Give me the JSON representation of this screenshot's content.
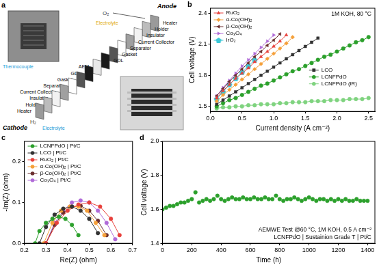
{
  "diagram": {
    "title": "a",
    "anode": "Anode",
    "cathode": "Cathode",
    "anode_gas": "O₂",
    "cathode_gas": "H₂",
    "electrolyte_labels": [
      "Electrolyte",
      "Electrolyte"
    ],
    "thermocouple": "Thermocouple",
    "anode_layers": [
      "Heater",
      "Holder",
      "Insulator",
      "Current Collector",
      "Separator",
      "Gasket",
      "GDL"
    ],
    "center_layer": "AEM",
    "cathode_layers": [
      "GDL",
      "Gasket",
      "Separator",
      "Current Collector",
      "Insulator",
      "Holder",
      "Heater"
    ]
  },
  "chart_data": [
    {
      "type": "line",
      "title": "b",
      "x_label": "Current density (A cm⁻²)",
      "y_label": "Cell voltage (V)",
      "annotations": [
        "1M KOH, 80 °C"
      ],
      "xlim": [
        0,
        2.6
      ],
      "xticks": [
        {
          "value": 0,
          "label": "0.0"
        },
        0.5,
        {
          "value": 1,
          "label": "1.0"
        },
        1.5,
        {
          "value": 2,
          "label": "2.0"
        },
        2.5
      ],
      "ylim": [
        1.45,
        2.45
      ],
      "yticks": [
        1.5,
        1.8,
        2.1,
        2.4
      ],
      "grid": false,
      "legend": "upper left",
      "line_style": "solid",
      "series": [
        {
          "name": "RuO₂",
          "color": "#e8413c",
          "marker": "triangle",
          "x": [
            0.1,
            0.2,
            0.3,
            0.4,
            0.5,
            0.6,
            0.7,
            0.8,
            0.9,
            1.0,
            1.1,
            1.2
          ],
          "values": [
            1.58,
            1.65,
            1.71,
            1.77,
            1.82,
            1.87,
            1.93,
            1.98,
            2.03,
            2.08,
            2.13,
            2.19
          ]
        },
        {
          "name": "α-Co(OH)₂",
          "color": "#f5a03a",
          "marker": "diamond",
          "x": [
            0.1,
            0.2,
            0.3,
            0.4,
            0.5,
            0.6,
            0.7,
            0.8,
            0.9,
            1.0,
            1.1,
            1.2,
            1.3
          ],
          "values": [
            1.55,
            1.61,
            1.66,
            1.71,
            1.76,
            1.81,
            1.86,
            1.91,
            1.96,
            2.01,
            2.06,
            2.11,
            2.17
          ]
        },
        {
          "name": "β-Co(OH)₂",
          "color": "#6b2f2f",
          "marker": "triangle-left",
          "x": [
            0.1,
            0.2,
            0.3,
            0.4,
            0.5,
            0.6,
            0.7,
            0.8,
            0.9,
            1.0,
            1.1
          ],
          "values": [
            1.6,
            1.67,
            1.74,
            1.8,
            1.86,
            1.92,
            1.98,
            2.03,
            2.09,
            2.14,
            2.2
          ]
        },
        {
          "name": "Co₃O₄",
          "color": "#b06ad8",
          "marker": "triangle-right",
          "x": [
            0.1,
            0.2,
            0.3,
            0.4,
            0.5,
            0.6,
            0.7,
            0.8,
            0.9,
            1.0
          ],
          "values": [
            1.6,
            1.68,
            1.75,
            1.82,
            1.89,
            1.95,
            2.01,
            2.07,
            2.13,
            2.19
          ]
        },
        {
          "name": "IrO₂",
          "color": "#3cc8d8",
          "marker": "pentagon",
          "x": [
            0.1,
            0.2,
            0.3,
            0.4,
            0.5,
            0.6,
            0.7
          ],
          "values": [
            1.57,
            1.64,
            1.71,
            1.77,
            1.83,
            1.89,
            1.95
          ]
        },
        {
          "name": "LCO",
          "color": "#333333",
          "marker": "square",
          "x": [
            0.1,
            0.2,
            0.3,
            0.4,
            0.5,
            0.6,
            0.7,
            0.8,
            0.9,
            1.0,
            1.1,
            1.2,
            1.3,
            1.4,
            1.5,
            1.6,
            1.7
          ],
          "values": [
            1.52,
            1.56,
            1.6,
            1.64,
            1.68,
            1.72,
            1.76,
            1.8,
            1.84,
            1.88,
            1.92,
            1.96,
            2.0,
            2.04,
            2.08,
            2.12,
            2.16
          ]
        },
        {
          "name": "LCNFPdO",
          "color": "#2ca02c",
          "marker": "circle",
          "x": [
            0.1,
            0.2,
            0.3,
            0.4,
            0.5,
            0.6,
            0.7,
            0.8,
            0.9,
            1.0,
            1.1,
            1.2,
            1.3,
            1.4,
            1.5,
            1.6,
            1.7,
            1.8,
            1.9,
            2.0,
            2.1,
            2.2,
            2.3,
            2.4,
            2.5
          ],
          "values": [
            1.5,
            1.53,
            1.56,
            1.58,
            1.61,
            1.64,
            1.67,
            1.7,
            1.72,
            1.75,
            1.78,
            1.81,
            1.84,
            1.86,
            1.89,
            1.92,
            1.95,
            1.98,
            2.0,
            2.03,
            2.06,
            2.09,
            2.12,
            2.14,
            2.17
          ]
        },
        {
          "name": "LCNFPdO (iR)",
          "color": "#7fd37f",
          "marker": "circle",
          "x": [
            0.1,
            0.2,
            0.3,
            0.4,
            0.5,
            0.6,
            0.7,
            0.8,
            0.9,
            1.0,
            1.1,
            1.2,
            1.3,
            1.4,
            1.5,
            1.6,
            1.7,
            1.8,
            1.9,
            2.0,
            2.1,
            2.2,
            2.3,
            2.4,
            2.5
          ],
          "values": [
            1.48,
            1.49,
            1.49,
            1.5,
            1.5,
            1.51,
            1.51,
            1.52,
            1.52,
            1.52,
            1.53,
            1.53,
            1.54,
            1.54,
            1.54,
            1.55,
            1.55,
            1.55,
            1.56,
            1.56,
            1.56,
            1.57,
            1.57,
            1.57,
            1.58
          ]
        }
      ]
    },
    {
      "type": "line",
      "title": "c",
      "x_label": "Re(Z) (ohm)",
      "y_label": "-Im(Z) (ohm)",
      "xlim": [
        0.2,
        0.7
      ],
      "xticks": [
        0.2,
        0.3,
        0.4,
        0.5,
        0.6,
        0.7
      ],
      "ylim": [
        0,
        0.25
      ],
      "yticks": [
        {
          "value": 0,
          "label": "0.0"
        },
        0.1,
        0.2
      ],
      "grid": false,
      "legend": "upper left",
      "line_style": "solid",
      "series": [
        {
          "name": "LCNFPdO | Pt/C",
          "color": "#2ca02c",
          "marker": "circle",
          "x": [
            0.25,
            0.27,
            0.3,
            0.33,
            0.36,
            0.39,
            0.42,
            0.45
          ],
          "values": [
            0,
            0.03,
            0.05,
            0.06,
            0.065,
            0.06,
            0.045,
            0.02
          ]
        },
        {
          "name": "LCO | Pt/C",
          "color": "#333333",
          "marker": "circle",
          "x": [
            0.27,
            0.3,
            0.34,
            0.38,
            0.42,
            0.46,
            0.5,
            0.54
          ],
          "values": [
            0,
            0.04,
            0.07,
            0.085,
            0.09,
            0.08,
            0.06,
            0.025
          ]
        },
        {
          "name": "RuO₂ | Pt/C",
          "color": "#e8413c",
          "marker": "circle",
          "x": [
            0.3,
            0.35,
            0.4,
            0.45,
            0.5,
            0.55,
            0.6,
            0.64
          ],
          "values": [
            0,
            0.05,
            0.08,
            0.095,
            0.1,
            0.09,
            0.06,
            0.02
          ]
        },
        {
          "name": "α-Co(OH)₂ | Pt/C",
          "color": "#f5a03a",
          "marker": "circle",
          "x": [
            0.29,
            0.33,
            0.37,
            0.41,
            0.45,
            0.49,
            0.53,
            0.57
          ],
          "values": [
            0,
            0.05,
            0.08,
            0.09,
            0.09,
            0.08,
            0.05,
            0.02
          ]
        },
        {
          "name": "β-Co(OH)₂ | Pt/C",
          "color": "#6b2f2f",
          "marker": "circle",
          "x": [
            0.3,
            0.34,
            0.38,
            0.42,
            0.46,
            0.5,
            0.54,
            0.58
          ],
          "values": [
            0,
            0.045,
            0.075,
            0.09,
            0.092,
            0.08,
            0.055,
            0.02
          ]
        },
        {
          "name": "Co₃O₄ | Pt/C",
          "color": "#b06ad8",
          "marker": "circle",
          "x": [
            0.3,
            0.34,
            0.38,
            0.42,
            0.46,
            0.5,
            0.54,
            0.58,
            0.62
          ],
          "values": [
            0,
            0.05,
            0.08,
            0.1,
            0.105,
            0.1,
            0.08,
            0.05,
            0.01
          ]
        }
      ]
    },
    {
      "type": "scatter",
      "title": "d",
      "x_label": "Time (h)",
      "y_label": "Cell voltage (V)",
      "annotations": [
        "AEMWE Test @60 °C, 1M KOH, 0.5 A cm⁻²",
        "LCNFPdO | Sustainion Grade T | Pt/C"
      ],
      "xlim": [
        0,
        1450
      ],
      "xticks": [
        0,
        200,
        400,
        600,
        800,
        1000,
        1200,
        1400
      ],
      "ylim": [
        1.4,
        2.0
      ],
      "yticks": [
        1.4,
        1.6,
        1.8,
        {
          "value": 2,
          "label": "2.0"
        }
      ],
      "grid": false,
      "line_style": "none",
      "series": [
        {
          "color": "#2ca02c",
          "marker": "circle",
          "x": [
            0,
            25,
            50,
            75,
            100,
            125,
            150,
            175,
            200,
            225,
            250,
            275,
            300,
            325,
            350,
            375,
            400,
            425,
            450,
            475,
            500,
            525,
            550,
            575,
            600,
            625,
            650,
            675,
            700,
            725,
            750,
            775,
            800,
            825,
            850,
            875,
            900,
            925,
            950,
            975,
            1000,
            1025,
            1050,
            1075,
            1100,
            1125,
            1150,
            1175,
            1200,
            1225,
            1250,
            1275,
            1300,
            1325,
            1350,
            1375,
            1400
          ],
          "values": [
            1.6,
            1.61,
            1.62,
            1.62,
            1.63,
            1.64,
            1.64,
            1.65,
            1.66,
            1.7,
            1.64,
            1.65,
            1.66,
            1.65,
            1.66,
            1.68,
            1.66,
            1.65,
            1.66,
            1.67,
            1.66,
            1.66,
            1.67,
            1.66,
            1.66,
            1.67,
            1.66,
            1.66,
            1.67,
            1.66,
            1.66,
            1.68,
            1.66,
            1.65,
            1.66,
            1.66,
            1.67,
            1.66,
            1.65,
            1.66,
            1.67,
            1.66,
            1.65,
            1.66,
            1.66,
            1.65,
            1.66,
            1.65,
            1.66,
            1.65,
            1.66,
            1.65,
            1.65,
            1.66,
            1.65,
            1.65,
            1.65
          ]
        }
      ]
    }
  ]
}
